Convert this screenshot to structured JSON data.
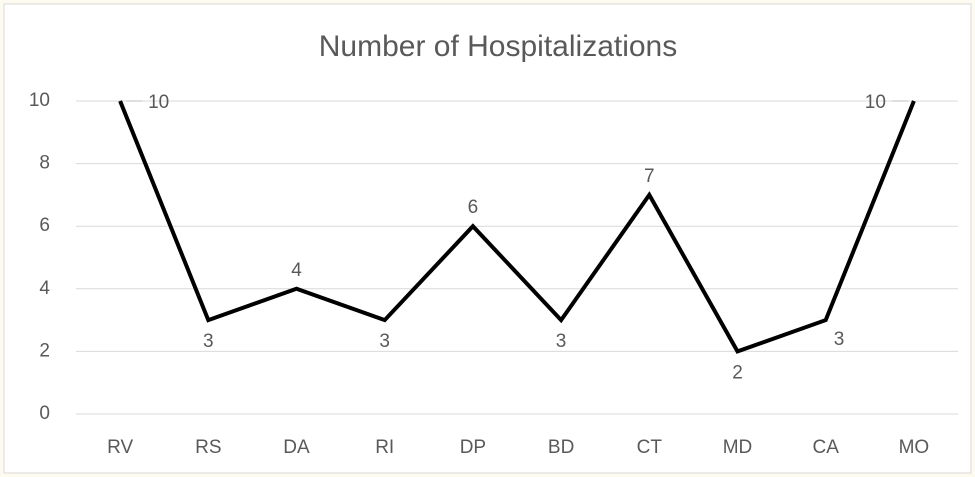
{
  "chart_data": {
    "type": "line",
    "title": "Number of Hospitalizations",
    "categories": [
      "RV",
      "RS",
      "DA",
      "RI",
      "DP",
      "BD",
      "CT",
      "MD",
      "CA",
      "MO"
    ],
    "values": [
      10,
      3,
      4,
      3,
      6,
      3,
      7,
      2,
      3,
      10
    ],
    "color": "#000000",
    "ylim": [
      0,
      10
    ],
    "yticks": [
      0,
      2,
      4,
      6,
      8,
      10
    ],
    "grid": true
  }
}
